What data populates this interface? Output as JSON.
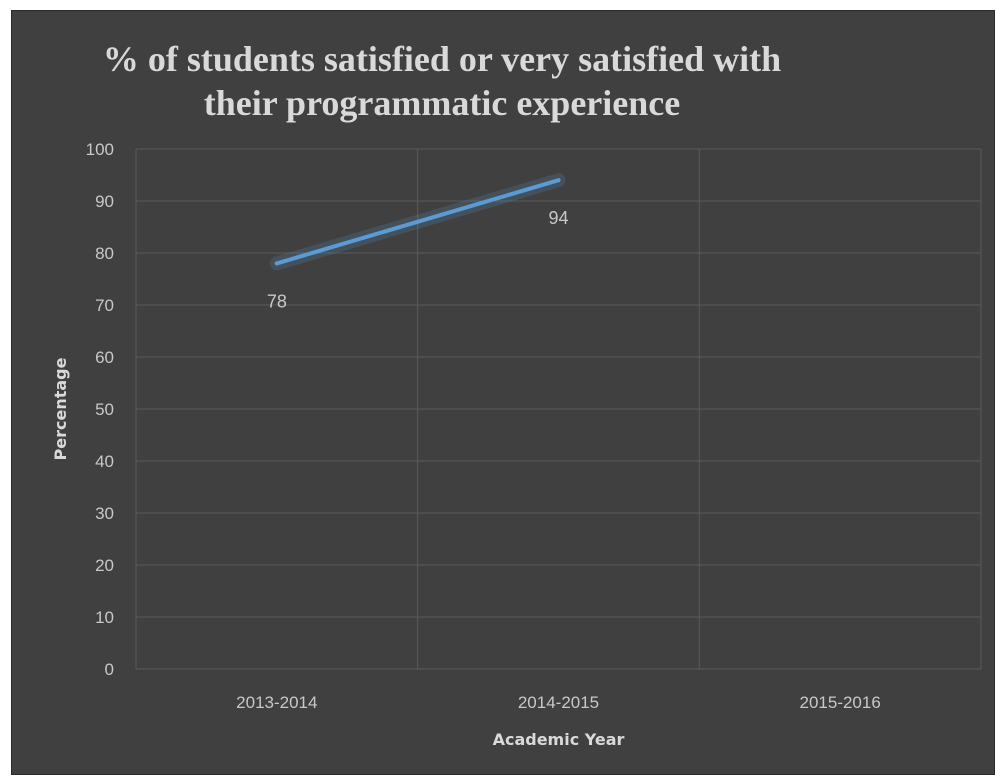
{
  "chart_data": {
    "type": "line",
    "title_lines": [
      "% of students satisfied or very satisfied with",
      "their programmatic experience"
    ],
    "xlabel": "Academic Year",
    "ylabel": "Percentage",
    "categories": [
      "2013-2014",
      "2014-2015",
      "2015-2016"
    ],
    "series": [
      {
        "values": [
          78,
          94,
          null
        ],
        "data_labels": [
          "78",
          "94",
          ""
        ]
      }
    ],
    "ylim": [
      0,
      100
    ],
    "yticks": [
      0,
      10,
      20,
      30,
      40,
      50,
      60,
      70,
      80,
      90,
      100
    ],
    "grid": true,
    "legend": "none"
  },
  "colors": {
    "background": "#404040",
    "line": "#5b9bd5",
    "grid": "#5a5a5a",
    "text": "#d9d9d9"
  }
}
